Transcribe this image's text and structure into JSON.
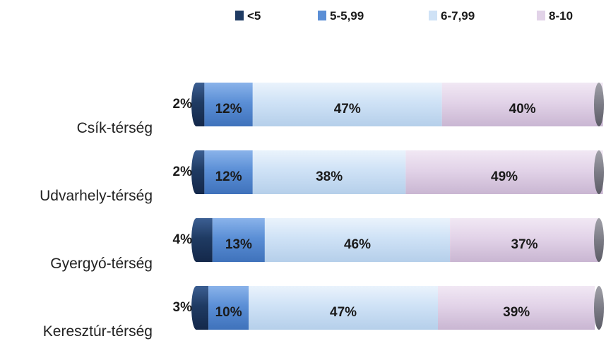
{
  "chart_data": {
    "type": "bar",
    "orientation": "horizontal",
    "stacked": true,
    "percent": true,
    "categories": [
      "Csík-térség",
      "Udvarhely-térség",
      "Gyergyó-térség",
      "Keresztúr-térség"
    ],
    "series": [
      {
        "name": "<5",
        "values": [
          2,
          2,
          4,
          3
        ],
        "color": "#1f3b63"
      },
      {
        "name": "5-5,99",
        "values": [
          12,
          12,
          13,
          10
        ],
        "color": "#5b8fd6"
      },
      {
        "name": "6-7,99",
        "values": [
          47,
          38,
          46,
          47
        ],
        "color": "#cfe2f6"
      },
      {
        "name": "8-10",
        "values": [
          40,
          49,
          37,
          39
        ],
        "color": "#e2d3e8"
      }
    ],
    "data_labels": [
      [
        "2%",
        "12%",
        "47%",
        "40%"
      ],
      [
        "2%",
        "12%",
        "38%",
        "49%"
      ],
      [
        "4%",
        "13%",
        "46%",
        "37%"
      ],
      [
        "3%",
        "10%",
        "47%",
        "39%"
      ]
    ],
    "legend_position": "top",
    "grid": false
  }
}
